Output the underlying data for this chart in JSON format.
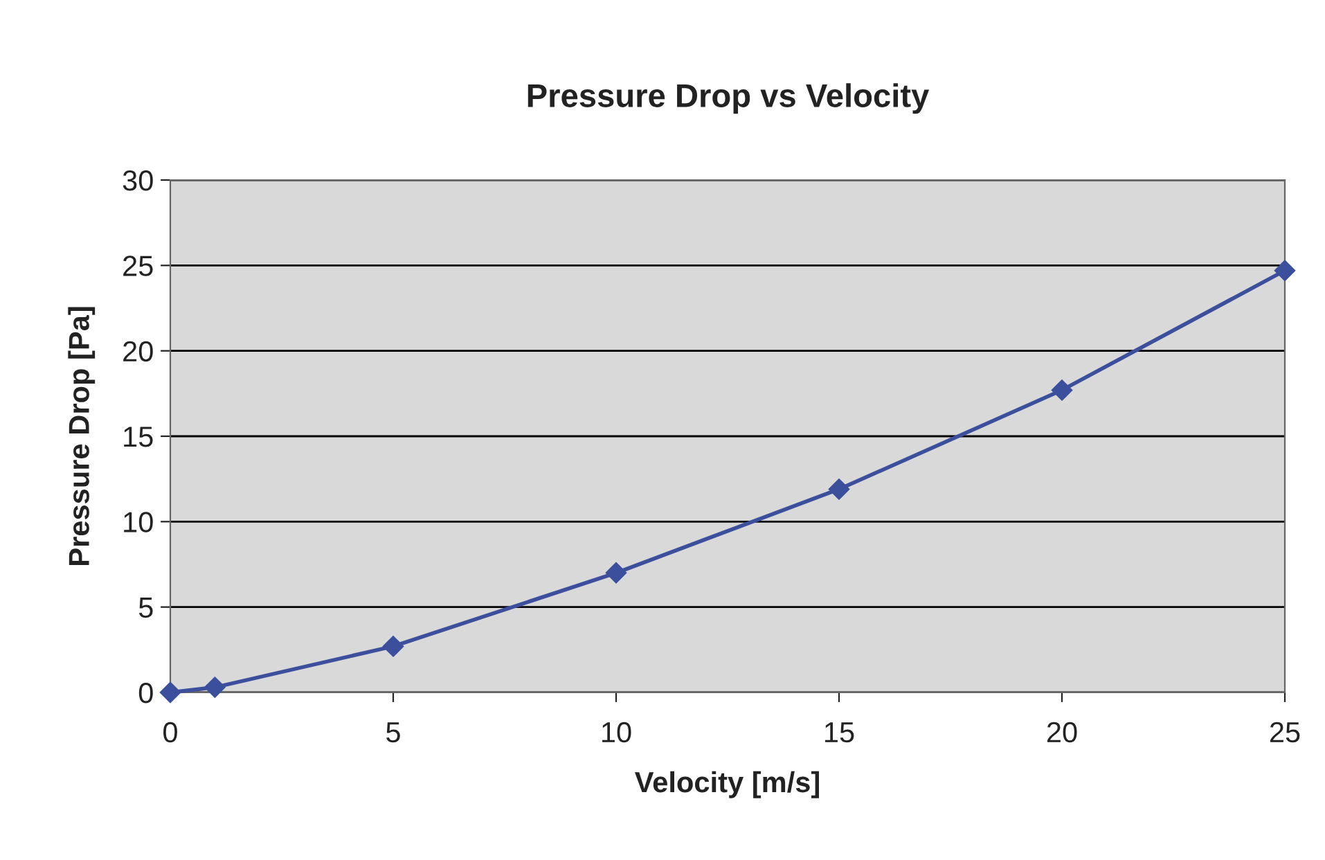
{
  "chart_data": {
    "type": "line",
    "title": "Pressure Drop vs Velocity",
    "xlabel": "Velocity [m/s]",
    "ylabel": "Pressure Drop [Pa]",
    "x": [
      0,
      1,
      5,
      10,
      15,
      20,
      25
    ],
    "series": [
      {
        "color": "#3b4f9c",
        "values": [
          0,
          0.3,
          2.7,
          7.0,
          11.9,
          17.7,
          24.7
        ]
      }
    ],
    "xlim": [
      0,
      25
    ],
    "xticks": [
      0,
      5,
      10,
      15,
      20,
      25
    ],
    "ylim": [
      0,
      30
    ],
    "yticks": [
      0,
      5,
      10,
      15,
      20,
      25,
      30
    ],
    "grid": "y",
    "marker": "diamond",
    "line_style": "solid"
  }
}
